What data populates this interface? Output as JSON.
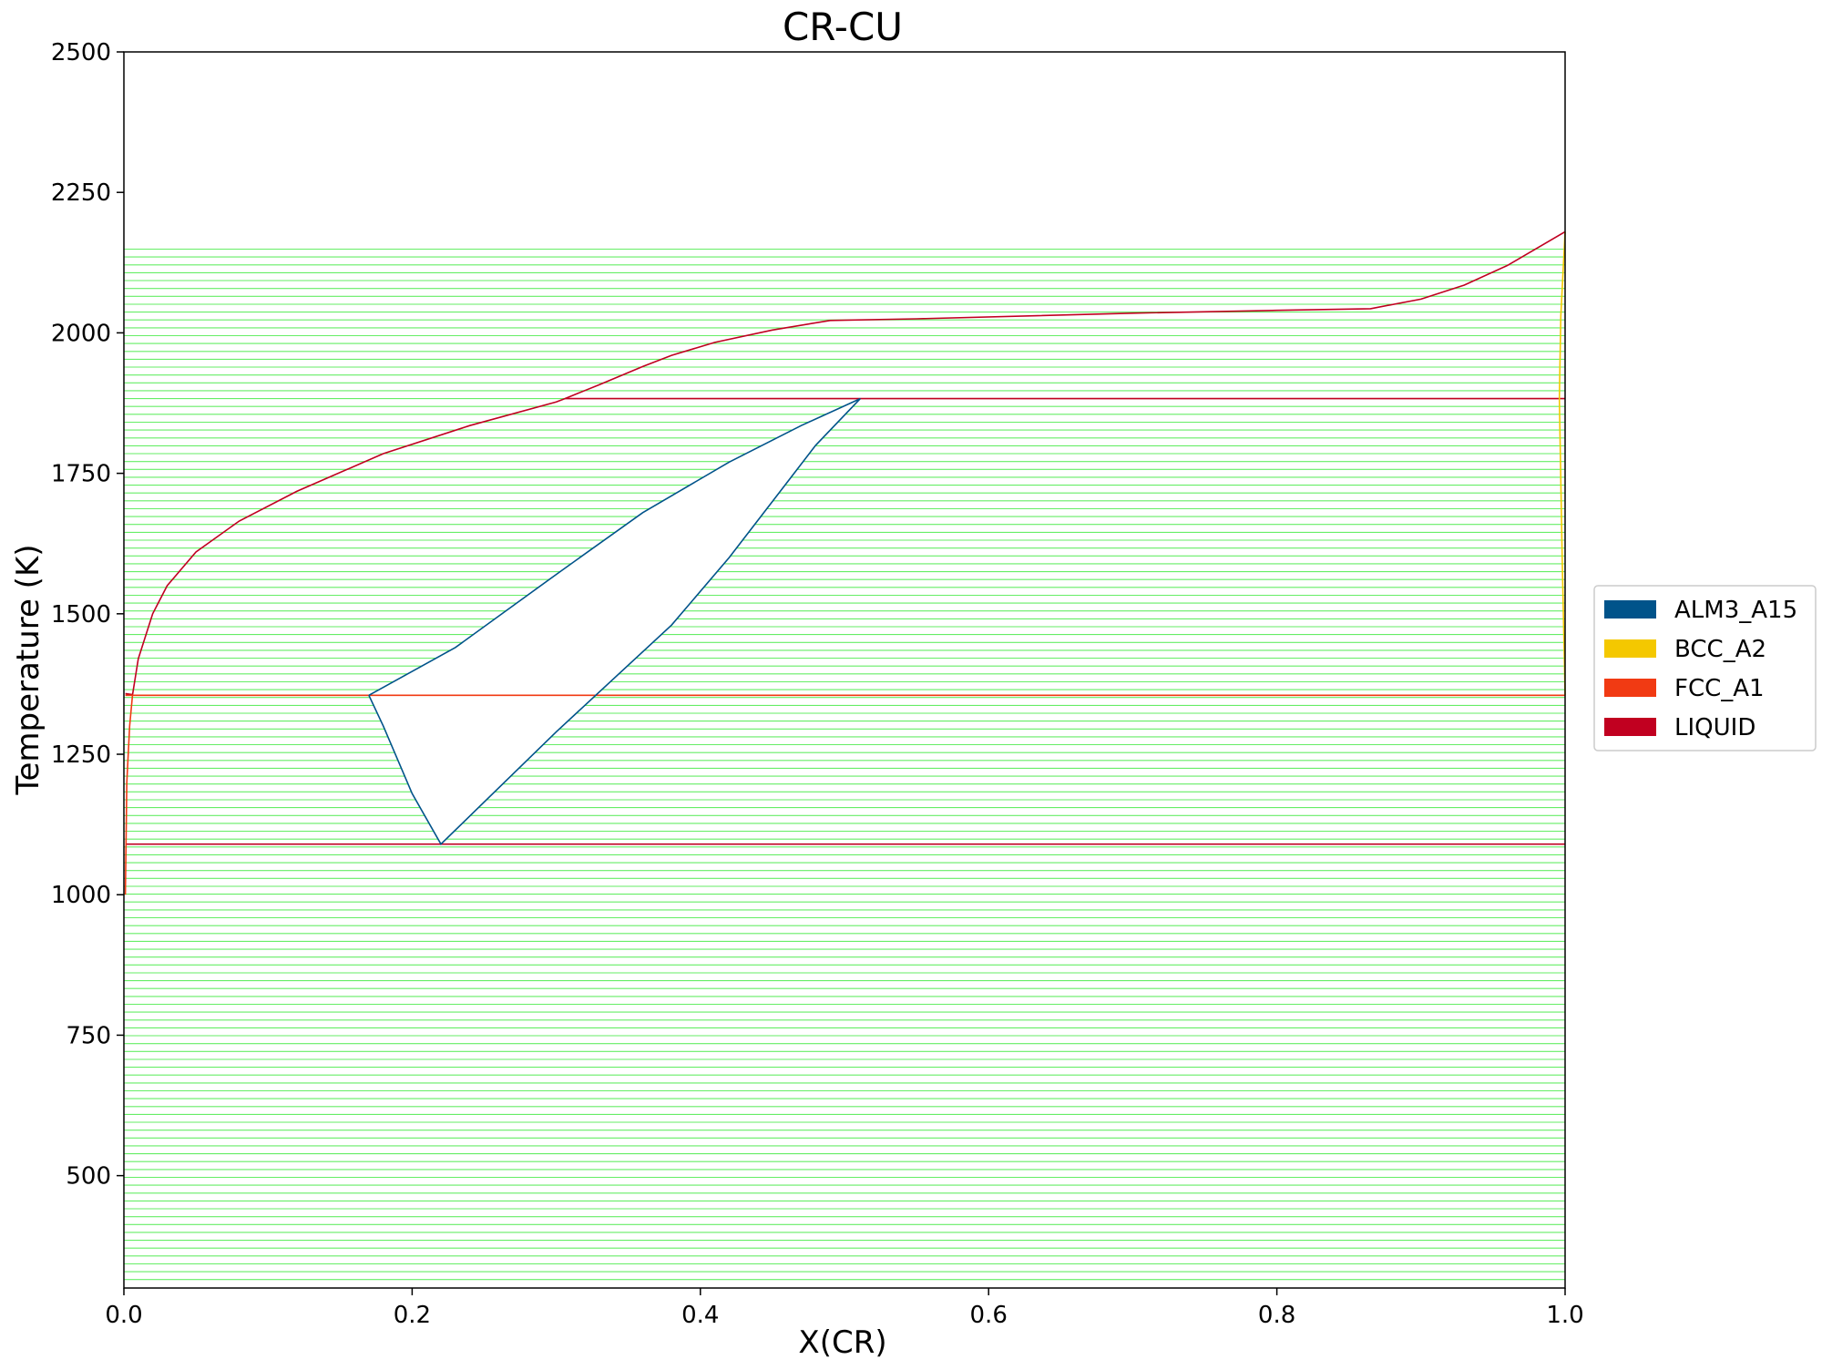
{
  "chart_data": {
    "type": "line",
    "title": "CR-CU",
    "xlabel": "X(CR)",
    "ylabel": "Temperature (K)",
    "xlim": [
      0.0,
      1.0
    ],
    "ylim": [
      300,
      2500
    ],
    "xticks": [
      "0.0",
      "0.2",
      "0.4",
      "0.6",
      "0.8",
      "1.0"
    ],
    "yticks": [
      "500",
      "750",
      "1000",
      "1250",
      "1500",
      "1750",
      "2000",
      "2250",
      "2500"
    ],
    "grid": false,
    "legend_position": "right",
    "legend": [
      {
        "label": "ALM3_A15",
        "color": "#00538a"
      },
      {
        "label": "BCC_A2",
        "color": "#f4c800"
      },
      {
        "label": "FCC_A1",
        "color": "#f13a13"
      },
      {
        "label": "LIQUID",
        "color": "#c10020"
      }
    ],
    "tie_line_color": "#66ee66",
    "tie_line_region": {
      "t_min": 315,
      "t_max": 2150
    },
    "boundaries": [
      {
        "phase": "LIQUID",
        "points": [
          [
            0.001,
            1358
          ],
          [
            0.006,
            1356
          ],
          [
            0.01,
            1420
          ],
          [
            0.02,
            1500
          ],
          [
            0.03,
            1550
          ],
          [
            0.05,
            1610
          ],
          [
            0.08,
            1665
          ],
          [
            0.12,
            1718
          ],
          [
            0.18,
            1785
          ],
          [
            0.24,
            1835
          ],
          [
            0.3,
            1877
          ],
          [
            0.306,
            1883
          ],
          [
            0.33,
            1908
          ],
          [
            0.36,
            1940
          ],
          [
            0.38,
            1960
          ],
          [
            0.41,
            1983
          ],
          [
            0.45,
            2005
          ],
          [
            0.49,
            2022
          ],
          [
            0.55,
            2025
          ],
          [
            0.7,
            2035
          ],
          [
            0.8,
            2040
          ],
          [
            0.865,
            2043
          ],
          [
            0.9,
            2060
          ],
          [
            0.93,
            2085
          ],
          [
            0.96,
            2120
          ],
          [
            1.0,
            2180
          ]
        ]
      },
      {
        "phase": "LIQUID",
        "points": [
          [
            0.306,
            1883
          ],
          [
            1.0,
            1883
          ]
        ]
      },
      {
        "phase": "LIQUID",
        "points": [
          [
            0.001,
            1090
          ],
          [
            1.0,
            1090
          ]
        ]
      },
      {
        "phase": "FCC_A1",
        "points": [
          [
            0.001,
            1355
          ],
          [
            1.0,
            1355
          ]
        ]
      },
      {
        "phase": "FCC_A1",
        "points": [
          [
            0.001,
            1000
          ],
          [
            0.002,
            1200
          ],
          [
            0.004,
            1300
          ],
          [
            0.006,
            1356
          ]
        ]
      },
      {
        "phase": "BCC_A2",
        "points": [
          [
            1.0,
            2180
          ],
          [
            0.997,
            2030
          ],
          [
            0.996,
            1883
          ],
          [
            0.998,
            1600
          ],
          [
            1.0,
            1355
          ]
        ]
      },
      {
        "phase": "ALM3_A15",
        "points": [
          [
            0.17,
            1355
          ],
          [
            0.23,
            1440
          ],
          [
            0.3,
            1570
          ],
          [
            0.36,
            1680
          ],
          [
            0.42,
            1770
          ],
          [
            0.47,
            1835
          ],
          [
            0.511,
            1883
          ],
          [
            0.48,
            1800
          ],
          [
            0.45,
            1700
          ],
          [
            0.42,
            1600
          ],
          [
            0.38,
            1480
          ],
          [
            0.3,
            1290
          ],
          [
            0.22,
            1090
          ],
          [
            0.2,
            1180
          ],
          [
            0.18,
            1300
          ],
          [
            0.17,
            1355
          ]
        ]
      }
    ]
  }
}
